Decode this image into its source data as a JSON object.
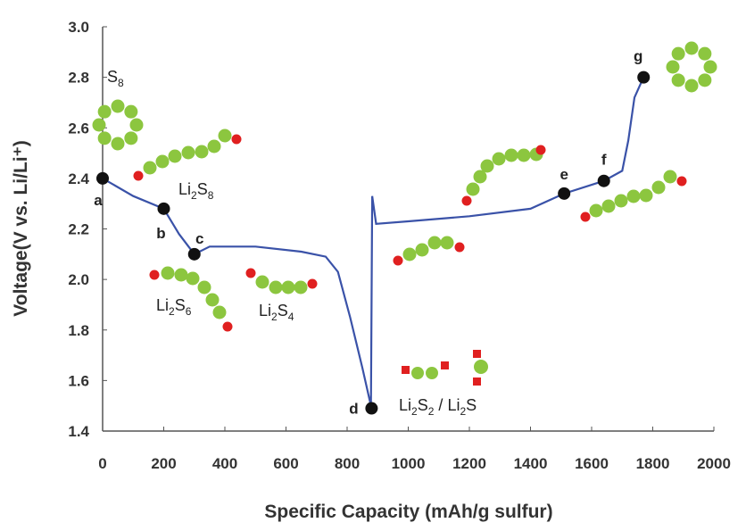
{
  "chart_data": {
    "type": "line",
    "xlabel": "Specific Capacity (mAh/g sulfur)",
    "ylabel": "Voltage(V vs. Li/Li⁺)",
    "series": [
      {
        "color": "#3a52a8",
        "x": [
          0,
          100,
          200,
          250,
          300,
          350,
          500,
          650,
          730,
          770,
          810,
          850,
          878,
          882,
          895,
          1000,
          1200,
          1400,
          1510,
          1640,
          1700,
          1720,
          1740,
          1770
        ],
        "values": [
          2.4,
          2.33,
          2.28,
          2.18,
          2.1,
          2.13,
          2.13,
          2.11,
          2.09,
          2.03,
          1.85,
          1.65,
          1.5,
          2.33,
          2.22,
          2.23,
          2.25,
          2.28,
          2.34,
          2.39,
          2.43,
          2.55,
          2.72,
          2.8
        ]
      }
    ],
    "points": [
      {
        "label": "a",
        "x": 0,
        "y": 2.4
      },
      {
        "label": "b",
        "x": 200,
        "y": 2.28
      },
      {
        "label": "c",
        "x": 300,
        "y": 2.1
      },
      {
        "label": "d",
        "x": 880,
        "y": 1.49
      },
      {
        "label": "e",
        "x": 1510,
        "y": 2.34
      },
      {
        "label": "f",
        "x": 1640,
        "y": 2.39
      },
      {
        "label": "g",
        "x": 1770,
        "y": 2.8
      }
    ],
    "annotations": [
      "S8",
      "Li2S8",
      "Li2S6",
      "Li2S4",
      "Li2S2 / Li2S"
    ],
    "xlim": [
      0,
      2000
    ],
    "ylim": [
      1.4,
      3.0
    ],
    "xticks": [
      0,
      200,
      400,
      600,
      800,
      1000,
      1200,
      1400,
      1600,
      1800,
      2000
    ],
    "yticks": [
      1.4,
      1.6,
      1.8,
      {
        "value": 2,
        "label": "2.0"
      },
      2.2,
      2.4,
      2.6,
      2.8,
      {
        "value": 3,
        "label": "3.0"
      }
    ]
  }
}
